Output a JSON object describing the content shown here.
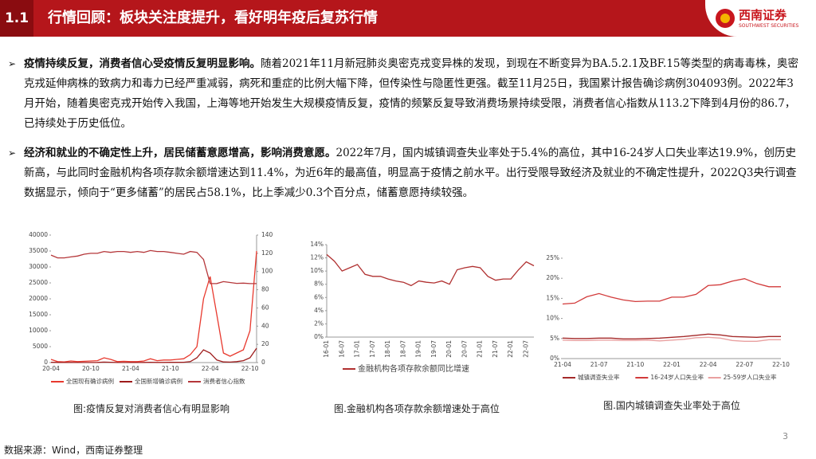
{
  "header": {
    "section": "1.1",
    "title": "行情回顾：板块关注度提升，看好明年疫后复苏行情",
    "logo": "西南证券",
    "logo_sub": "SOUTHWEST SECURITIES"
  },
  "bullets": [
    {
      "lead": "疫情持续反复，消费者信心受疫情反复明显影响。",
      "text": "随着2021年11月新冠肺炎奥密克戎变异株的发现，到现在不断变异为BA.5.2.1及BF.15等类型的病毒毒株，奥密克戎延伸病株的致病力和毒力已经严重减弱，病死和重症的比例大幅下降，但传染性与隐匿性更强。截至11月25日，我国累计报告确诊病例304093例。2022年3月开始，随着奥密克戎开始传入我国，上海等地开始发生大规模疫情反复，疫情的频繁反复导致消费场景持续受限，消费者信心指数从113.2下降到4月份的86.7，已持续处于历史低位。"
    },
    {
      "lead": "经济和就业的不确定性上升，居民储蓄意愿增高，影响消费意愿。",
      "text": "2022年7月，国内城镇调查失业率处于5.4%的高位，其中16-24岁人口失业率达19.9%，创历史新高，与此同时金融机构各项存款余额增速达到11.4%，为近6年的最高值，明显高于疫情之前水平。出行受限导致经济及就业的不确定性提升，2022Q3央行调查数据显示，倾向于“更多储蓄”的居民占58.1%，比上季减少0.3个百分点，储蓄意愿持续较强。"
    }
  ],
  "chart_data": [
    {
      "type": "line",
      "caption": "图:疫情反复对消费者信心有明显影响",
      "grid": false,
      "categories": [
        "20-04",
        null,
        null,
        null,
        null,
        null,
        "20-10",
        null,
        null,
        null,
        null,
        null,
        "21-04",
        null,
        null,
        null,
        null,
        null,
        "21-10",
        null,
        null,
        null,
        null,
        null,
        "22-04",
        null,
        null,
        null,
        null,
        null,
        "22-10",
        null
      ],
      "ylim": [
        0,
        40000
      ],
      "yticks": [
        0,
        5000,
        10000,
        15000,
        20000,
        25000,
        30000,
        35000,
        40000
      ],
      "y2lim": [
        0,
        140
      ],
      "y2ticks": [
        0,
        20,
        40,
        60,
        80,
        100,
        120,
        140
      ],
      "series": [
        {
          "name": "全国现有确诊病例",
          "color": "#e8392e",
          "values": [
            1000,
            300,
            200,
            500,
            300,
            400,
            500,
            600,
            1500,
            1000,
            300,
            400,
            300,
            300,
            500,
            1200,
            600,
            800,
            800,
            1000,
            1200,
            2500,
            5000,
            20000,
            27000,
            15000,
            3000,
            2000,
            3000,
            4000,
            10000,
            35000
          ]
        },
        {
          "name": "全国新增确诊病例",
          "color": "#9e1b1b",
          "values": [
            100,
            50,
            30,
            50,
            30,
            20,
            30,
            40,
            150,
            100,
            20,
            30,
            30,
            30,
            50,
            100,
            40,
            60,
            70,
            80,
            100,
            300,
            1500,
            4000,
            3000,
            800,
            200,
            150,
            300,
            600,
            1500,
            4500
          ]
        },
        {
          "name": "消费者信心指数",
          "color": "#b5373a",
          "axis": "y2",
          "values": [
            118,
            115,
            115,
            116,
            117,
            119,
            120,
            120,
            122,
            121,
            122,
            122,
            121,
            122,
            121,
            123,
            122,
            122,
            121,
            120,
            119,
            122,
            121,
            113.2,
            86.7,
            86.8,
            88.9,
            87.9,
            87,
            87.2,
            86.7,
            86.7
          ]
        }
      ]
    },
    {
      "type": "line",
      "caption": "图.金融机构各项存款余额增速处于高位",
      "grid": false,
      "rotate_labels": true,
      "categories": [
        "16-01",
        null,
        "16-07",
        null,
        "17-01",
        null,
        "17-07",
        null,
        "18-01",
        null,
        "18-07",
        null,
        "19-01",
        null,
        "19-07",
        null,
        "20-01",
        null,
        "20-07",
        null,
        "21-01",
        null,
        "21-07",
        null,
        "22-01",
        null,
        "22-07",
        null
      ],
      "ylim": [
        0,
        14
      ],
      "yticks": [
        {
          "value": 0,
          "label": "0%"
        },
        {
          "value": 2,
          "label": "2%"
        },
        {
          "value": 4,
          "label": "4%"
        },
        {
          "value": 6,
          "label": "6%"
        },
        {
          "value": 8,
          "label": "8%"
        },
        {
          "value": 10,
          "label": "10%"
        },
        {
          "value": 12,
          "label": "12%"
        },
        {
          "value": 14,
          "label": "14%"
        }
      ],
      "series": [
        {
          "name": "金融机构各项存款余额同比增速",
          "color": "#b03030",
          "values": [
            12.5,
            11.5,
            10,
            10.5,
            11,
            9.5,
            9.2,
            9.2,
            8.8,
            8.5,
            8.3,
            7.8,
            8.5,
            8.3,
            8.2,
            8.5,
            8,
            10.2,
            10.5,
            10.7,
            10.5,
            9.2,
            8.6,
            8.8,
            8.8,
            10.2,
            11.4,
            10.8
          ]
        }
      ]
    },
    {
      "type": "line",
      "caption": "图.国内城镇调查失业率处于高位",
      "grid": false,
      "categories": [
        "21-04",
        null,
        null,
        "21-07",
        null,
        null,
        "21-10",
        null,
        null,
        "22-01",
        null,
        null,
        "22-04",
        null,
        null,
        "22-07",
        null,
        null,
        "22-10"
      ],
      "ylim": [
        0,
        25
      ],
      "yticks": [
        {
          "value": 0,
          "label": "0%"
        },
        {
          "value": 5,
          "label": "5%"
        },
        {
          "value": 10,
          "label": "10%"
        },
        {
          "value": 15,
          "label": "15%"
        },
        {
          "value": 20,
          "label": "20%"
        },
        {
          "value": 25,
          "label": "25%"
        }
      ],
      "series": [
        {
          "name": "城镇调查失业率",
          "color": "#a52a2a",
          "values": [
            5.1,
            5,
            5,
            5.1,
            5.1,
            4.9,
            4.9,
            5,
            5.1,
            5.3,
            5.5,
            5.8,
            6.1,
            5.9,
            5.5,
            5.4,
            5.3,
            5.5,
            5.5
          ]
        },
        {
          "name": "16-24岁人口失业率",
          "color": "#d23a3a",
          "values": [
            13.6,
            13.8,
            15.4,
            16.2,
            15.3,
            14.6,
            14.2,
            14.3,
            14.3,
            15.3,
            15.3,
            16,
            18.2,
            18.4,
            19.3,
            19.9,
            18.7,
            17.9,
            17.9
          ]
        },
        {
          "name": "25-59岁人口失业率",
          "color": "#e9a0a0",
          "values": [
            4.6,
            4.5,
            4.5,
            4.6,
            4.6,
            4.5,
            4.5,
            4.6,
            4.4,
            4.6,
            4.8,
            5.2,
            5.3,
            5.1,
            4.5,
            4.3,
            4.3,
            4.7,
            4.7
          ]
        }
      ]
    }
  ],
  "footer": {
    "source": "数据来源：Wind，西南证券整理",
    "page": "3"
  }
}
